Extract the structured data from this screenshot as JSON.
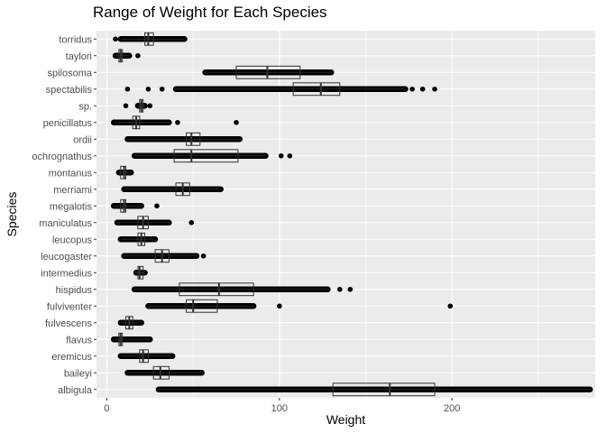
{
  "chart_data": {
    "type": "boxplot",
    "title": "Range of Weight for Each Species",
    "xlabel": "Weight",
    "ylabel": "Species",
    "xlim": [
      -6,
      283
    ],
    "x_ticks": [
      0,
      100,
      200
    ],
    "grid": true,
    "legend": "none",
    "orientation": "horizontal",
    "categories": [
      "albigula",
      "baileyi",
      "eremicus",
      "flavus",
      "fulvescens",
      "fulviventer",
      "hispidus",
      "intermedius",
      "leucogaster",
      "leucopus",
      "maniculatus",
      "megalotis",
      "merriami",
      "montanus",
      "ochrognathus",
      "ordii",
      "penicillatus",
      "sp.",
      "spectabilis",
      "spilosoma",
      "taylori",
      "torridus"
    ],
    "boxes": [
      {
        "species": "albigula",
        "q1": 131,
        "median": 164,
        "q3": 190,
        "whisker_low": 30,
        "whisker_high": 280,
        "outliers": []
      },
      {
        "species": "baileyi",
        "q1": 27,
        "median": 31,
        "q3": 36,
        "whisker_low": 12,
        "whisker_high": 55,
        "outliers": []
      },
      {
        "species": "eremicus",
        "q1": 19,
        "median": 21,
        "q3": 24,
        "whisker_low": 8,
        "whisker_high": 38,
        "outliers": []
      },
      {
        "species": "flavus",
        "q1": 7,
        "median": 8,
        "q3": 9,
        "whisker_low": 4,
        "whisker_high": 25,
        "outliers": []
      },
      {
        "species": "fulvescens",
        "q1": 11,
        "median": 13,
        "q3": 15,
        "whisker_low": 8,
        "whisker_high": 20,
        "outliers": []
      },
      {
        "species": "fulviventer",
        "q1": 46,
        "median": 50,
        "q3": 64,
        "whisker_low": 24,
        "whisker_high": 85,
        "outliers": [
          100,
          199
        ]
      },
      {
        "species": "hispidus",
        "q1": 42,
        "median": 65,
        "q3": 85,
        "whisker_low": 16,
        "whisker_high": 128,
        "outliers": [
          135,
          141
        ]
      },
      {
        "species": "intermedius",
        "q1": 18,
        "median": 19,
        "q3": 21,
        "whisker_low": 17,
        "whisker_high": 22,
        "outliers": []
      },
      {
        "species": "leucogaster",
        "q1": 28,
        "median": 32,
        "q3": 36,
        "whisker_low": 10,
        "whisker_high": 52,
        "outliers": [
          56
        ]
      },
      {
        "species": "leucopus",
        "q1": 18,
        "median": 20,
        "q3": 22,
        "whisker_low": 8,
        "whisker_high": 28,
        "outliers": []
      },
      {
        "species": "maniculatus",
        "q1": 18,
        "median": 21,
        "q3": 24,
        "whisker_low": 6,
        "whisker_high": 36,
        "outliers": [
          49
        ]
      },
      {
        "species": "megalotis",
        "q1": 8,
        "median": 10,
        "q3": 11,
        "whisker_low": 4,
        "whisker_high": 20,
        "outliers": [
          29
        ]
      },
      {
        "species": "merriami",
        "q1": 40,
        "median": 44,
        "q3": 48,
        "whisker_low": 10,
        "whisker_high": 66,
        "outliers": []
      },
      {
        "species": "montanus",
        "q1": 8,
        "median": 10,
        "q3": 11,
        "whisker_low": 7,
        "whisker_high": 14,
        "outliers": []
      },
      {
        "species": "ochrognathus",
        "q1": 39,
        "median": 49,
        "q3": 76,
        "whisker_low": 16,
        "whisker_high": 92,
        "outliers": [
          101,
          106
        ]
      },
      {
        "species": "ordii",
        "q1": 46,
        "median": 49,
        "q3": 54,
        "whisker_low": 12,
        "whisker_high": 77,
        "outliers": []
      },
      {
        "species": "penicillatus",
        "q1": 15,
        "median": 17,
        "q3": 19,
        "whisker_low": 4,
        "whisker_high": 36,
        "outliers": [
          41,
          75
        ]
      },
      {
        "species": "sp.",
        "q1": 19,
        "median": 20,
        "q3": 21,
        "whisker_low": 18,
        "whisker_high": 22,
        "outliers": [
          11,
          25
        ]
      },
      {
        "species": "spectabilis",
        "q1": 108,
        "median": 124,
        "q3": 135,
        "whisker_low": 40,
        "whisker_high": 173,
        "outliers": [
          12,
          24,
          32,
          177,
          183,
          190
        ]
      },
      {
        "species": "spilosoma",
        "q1": 75,
        "median": 93,
        "q3": 112,
        "whisker_low": 57,
        "whisker_high": 130,
        "outliers": []
      },
      {
        "species": "taylori",
        "q1": 7,
        "median": 8,
        "q3": 9,
        "whisker_low": 5,
        "whisker_high": 13,
        "outliers": [
          18
        ]
      },
      {
        "species": "torridus",
        "q1": 22,
        "median": 24,
        "q3": 27,
        "whisker_low": 8,
        "whisker_high": 45,
        "outliers": [
          5
        ]
      }
    ]
  }
}
